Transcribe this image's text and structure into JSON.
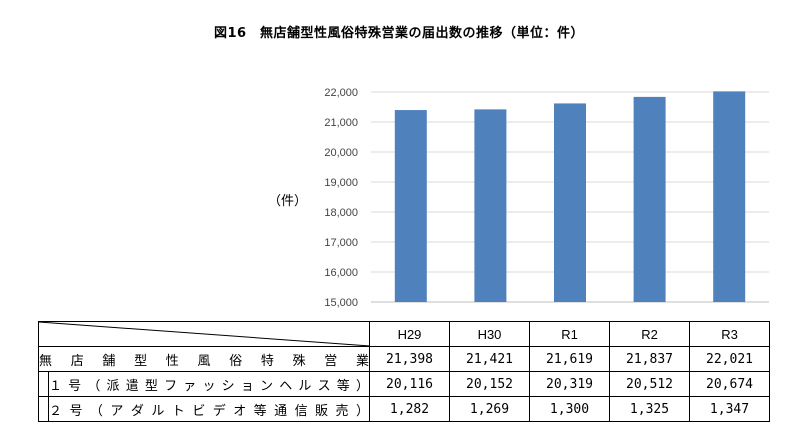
{
  "title": "図16　無店舗型性風俗特殊営業の届出数の推移（単位：件）",
  "unit_label": "（件）",
  "colors": {
    "bar": "#4f81bd",
    "grid": "#d9d9d9",
    "axis": "#bfbfbf"
  },
  "chart_data": {
    "type": "bar",
    "categories": [
      "H29",
      "H30",
      "R1",
      "R2",
      "R3"
    ],
    "values": [
      21398,
      21421,
      21619,
      21837,
      22021
    ],
    "ylim": [
      15000,
      22000
    ],
    "yticks": [
      "15,000",
      "16,000",
      "17,000",
      "18,000",
      "19,000",
      "20,000",
      "21,000",
      "22,000"
    ],
    "ylabel": "（件）",
    "grid": true,
    "legend": "none"
  },
  "table": {
    "headers": [
      "H29",
      "H30",
      "R1",
      "R2",
      "R3"
    ],
    "rows": [
      {
        "label": "無店舗型性風俗特殊営業",
        "values": [
          "21,398",
          "21,421",
          "21,619",
          "21,837",
          "22,021"
        ]
      },
      {
        "label": "１号（派遣型ファッションヘルス等）",
        "values": [
          "20,116",
          "20,152",
          "20,319",
          "20,512",
          "20,674"
        ]
      },
      {
        "label": "２号（アダルトビデオ等通信販売）",
        "values": [
          "1,282",
          "1,269",
          "1,300",
          "1,325",
          "1,347"
        ]
      }
    ]
  }
}
